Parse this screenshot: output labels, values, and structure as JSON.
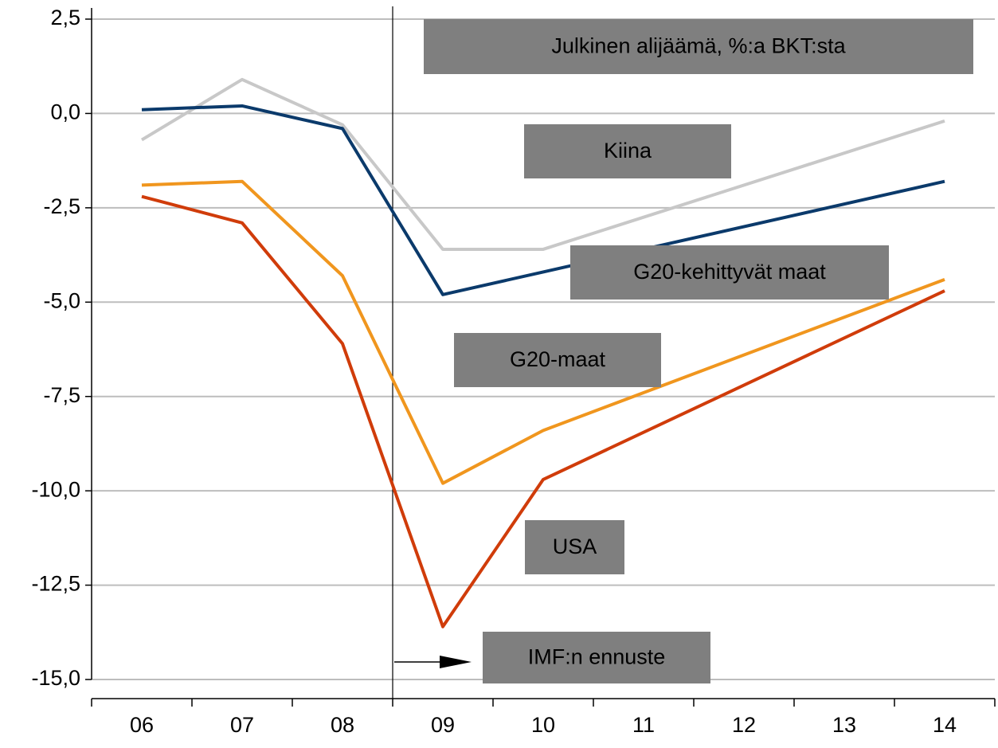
{
  "chart_data": {
    "type": "line",
    "title": "Julkinen alijäämä, %:a BKT:sta",
    "annotation": "IMF:n ennuste",
    "x": [
      6,
      7,
      8,
      9,
      10,
      14
    ],
    "xlim": [
      5.5,
      14.5
    ],
    "xticks": [
      {
        "value": 6,
        "label": "06"
      },
      {
        "value": 7,
        "label": "07"
      },
      {
        "value": 8,
        "label": "08"
      },
      {
        "value": 9,
        "label": "09"
      },
      {
        "value": 10,
        "label": "10"
      },
      {
        "value": 11,
        "label": "11"
      },
      {
        "value": 12,
        "label": "12"
      },
      {
        "value": 13,
        "label": "13"
      },
      {
        "value": 14,
        "label": "14"
      }
    ],
    "ylim": [
      -15,
      2.5
    ],
    "yticks": [
      {
        "value": 2.5,
        "label": "2,5"
      },
      {
        "value": 0,
        "label": "0,0"
      },
      {
        "value": -2.5,
        "label": "-2,5"
      },
      {
        "value": -5,
        "label": "-5,0"
      },
      {
        "value": -7.5,
        "label": "-7,5"
      },
      {
        "value": -10,
        "label": "-10,0"
      },
      {
        "value": -12.5,
        "label": "-12,5"
      },
      {
        "value": -15,
        "label": "-15,0"
      }
    ],
    "grid": true,
    "series": [
      {
        "name": "Kiina",
        "color": "#c8c8c8",
        "values": [
          -0.7,
          0.9,
          -0.3,
          -3.6,
          -3.6,
          -0.2
        ]
      },
      {
        "name": "G20-kehittyvät maat",
        "color": "#0b3a6b",
        "values": [
          0.1,
          0.2,
          -0.4,
          -4.8,
          -4.2,
          -1.8
        ]
      },
      {
        "name": "G20-maat",
        "color": "#f0961e",
        "values": [
          -1.9,
          -1.8,
          -4.3,
          -9.8,
          -8.4,
          -4.4
        ]
      },
      {
        "name": "USA",
        "color": "#d03c0a",
        "values": [
          -2.2,
          -2.9,
          -6.1,
          -13.6,
          -9.7,
          -4.7
        ]
      }
    ]
  }
}
